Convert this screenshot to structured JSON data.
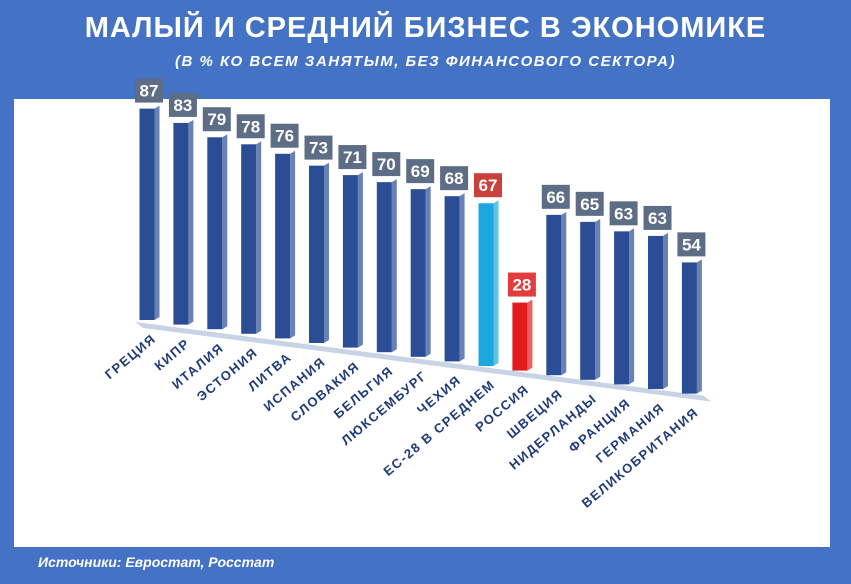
{
  "header": {
    "title": "МАЛЫЙ И СРЕДНИЙ БИЗНЕС В ЭКОНОМИКЕ",
    "subtitle": "(В % КО ВСЕМ ЗАНЯТЫМ,  БЕЗ ФИНАНСОВОГО  СЕКТОРА)"
  },
  "footer": {
    "source": "Источники: Евростат, Росстат"
  },
  "colors": {
    "background": "#4472c4",
    "bar": "#2a4d96",
    "bar_average": "#1ba8e0",
    "bar_russia": "#e31b1b",
    "label_box": "#5d6d85",
    "label_box_highlight": "#c9403c",
    "label_box_russia": "#e33c3c"
  },
  "chart_data": {
    "type": "bar",
    "title": "МАЛЫЙ И СРЕДНИЙ БИЗНЕС В ЭКОНОМИКЕ",
    "subtitle": "(В % КО ВСЕМ ЗАНЯТЫМ,  БЕЗ ФИНАНСОВОГО  СЕКТОРА)",
    "categories": [
      "ГРЕЦИЯ",
      "КИПР",
      "ИТАЛИЯ",
      "ЭСТОНИЯ",
      "ЛИТВА",
      "ИСПАНИЯ",
      "СЛОВАКИЯ",
      "БЕЛЬГИЯ",
      "ЛЮКСЕМБУРГ",
      "ЧЕХИЯ",
      "ЕС-28 В СРЕДНЕМ",
      "РОССИЯ",
      "ШВЕЦИЯ",
      "НИДЕРЛАНДЫ",
      "ФРАНЦИЯ",
      "ГЕРМАНИЯ",
      "ВЕЛИКОБРИТАНИЯ"
    ],
    "values": [
      87,
      83,
      79,
      78,
      76,
      73,
      71,
      70,
      69,
      68,
      67,
      28,
      66,
      65,
      63,
      63,
      54
    ],
    "highlight": {
      "ЕС-28 В СРЕДНЕМ": "average",
      "РОССИЯ": "russia"
    },
    "data_labels": true,
    "grid": false,
    "legend": "none"
  }
}
